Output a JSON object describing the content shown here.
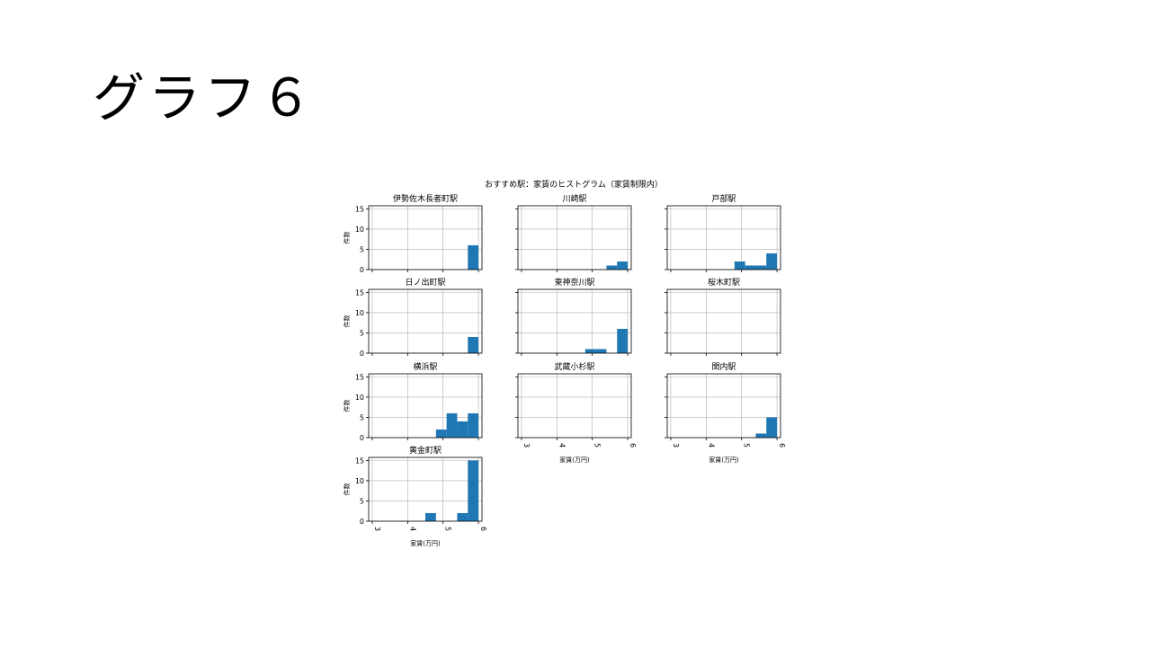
{
  "slide": {
    "title": "グラフ６"
  },
  "chart_data": {
    "type": "bar",
    "title": "おすすめ駅：家賃のヒストグラム（家賃制限内）",
    "xlabel": "家賃(万円)",
    "ylabel": "件数",
    "xlim": [
      2.9,
      6.1
    ],
    "ylim": [
      0,
      15.75
    ],
    "xticks": [
      3,
      4,
      5,
      6
    ],
    "yticks": [
      0,
      5,
      10,
      15
    ],
    "grid": true,
    "bar_color": "#1f77b4",
    "bin_width": 0.3,
    "panels": [
      {
        "name": "伊勢佐木長者町駅",
        "bins": [
          {
            "x0": 5.7,
            "x1": 6.0,
            "count": 6
          }
        ]
      },
      {
        "name": "川崎駅",
        "bins": [
          {
            "x0": 5.4,
            "x1": 5.7,
            "count": 1
          },
          {
            "x0": 5.7,
            "x1": 6.0,
            "count": 2
          }
        ]
      },
      {
        "name": "戸部駅",
        "bins": [
          {
            "x0": 4.8,
            "x1": 5.1,
            "count": 2
          },
          {
            "x0": 5.1,
            "x1": 5.4,
            "count": 1
          },
          {
            "x0": 5.4,
            "x1": 5.7,
            "count": 1
          },
          {
            "x0": 5.7,
            "x1": 6.0,
            "count": 4
          }
        ]
      },
      {
        "name": "日ノ出町駅",
        "bins": [
          {
            "x0": 5.7,
            "x1": 6.0,
            "count": 4
          }
        ]
      },
      {
        "name": "東神奈川駅",
        "bins": [
          {
            "x0": 4.8,
            "x1": 5.1,
            "count": 1
          },
          {
            "x0": 5.1,
            "x1": 5.4,
            "count": 1
          },
          {
            "x0": 5.7,
            "x1": 6.0,
            "count": 6
          }
        ]
      },
      {
        "name": "桜木町駅",
        "bins": []
      },
      {
        "name": "横浜駅",
        "bins": [
          {
            "x0": 4.8,
            "x1": 5.1,
            "count": 2
          },
          {
            "x0": 5.1,
            "x1": 5.4,
            "count": 6
          },
          {
            "x0": 5.4,
            "x1": 5.7,
            "count": 4
          },
          {
            "x0": 5.7,
            "x1": 6.0,
            "count": 6
          }
        ]
      },
      {
        "name": "武蔵小杉駅",
        "bins": []
      },
      {
        "name": "関内駅",
        "bins": [
          {
            "x0": 5.4,
            "x1": 5.7,
            "count": 1
          },
          {
            "x0": 5.7,
            "x1": 6.0,
            "count": 5
          }
        ]
      },
      {
        "name": "黄金町駅",
        "bins": [
          {
            "x0": 4.5,
            "x1": 4.8,
            "count": 2
          },
          {
            "x0": 5.4,
            "x1": 5.7,
            "count": 2
          },
          {
            "x0": 5.7,
            "x1": 6.0,
            "count": 15
          }
        ]
      }
    ]
  }
}
